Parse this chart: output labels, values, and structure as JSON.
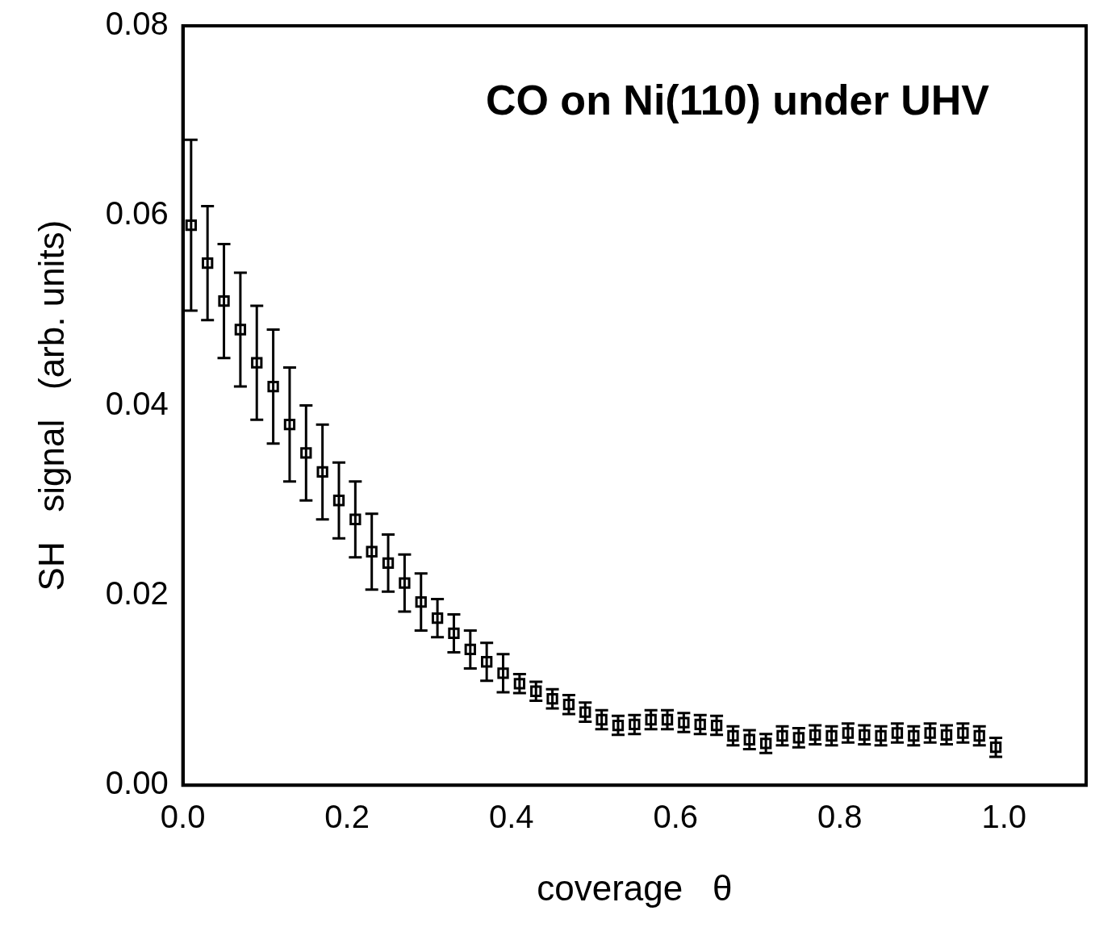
{
  "chart_data": {
    "type": "scatter",
    "xlabel": "coverage   θ",
    "ylabel": "SH   signal   (arb. units)",
    "annotations": [
      "CO on Ni(110) under UHV"
    ],
    "xlim": [
      0,
      1.1
    ],
    "ylim": [
      0,
      0.08
    ],
    "xticks": [
      {
        "value": 0,
        "label": "0.0"
      },
      {
        "value": 0.2,
        "label": "0.2"
      },
      {
        "value": 0.4,
        "label": "0.4"
      },
      {
        "value": 0.6,
        "label": "0.6"
      },
      {
        "value": 0.8,
        "label": "0.8"
      },
      {
        "value": 1,
        "label": "1.0"
      }
    ],
    "yticks": [
      {
        "value": 0,
        "label": "0.00"
      },
      {
        "value": 0.02,
        "label": "0.02"
      },
      {
        "value": 0.04,
        "label": "0.04"
      },
      {
        "value": 0.06,
        "label": "0.06"
      },
      {
        "value": 0.08,
        "label": "0.08"
      }
    ],
    "marker": "square",
    "series": [
      {
        "color": "#000000",
        "x": [
          0.01,
          0.03,
          0.05,
          0.07,
          0.09,
          0.11,
          0.13,
          0.15,
          0.17,
          0.19,
          0.21,
          0.23,
          0.25,
          0.27,
          0.29,
          0.31,
          0.33,
          0.35,
          0.37,
          0.39,
          0.41,
          0.43,
          0.45,
          0.47,
          0.49,
          0.51,
          0.53,
          0.55,
          0.57,
          0.59,
          0.61,
          0.63,
          0.65,
          0.67,
          0.69,
          0.71,
          0.73,
          0.75,
          0.77,
          0.79,
          0.81,
          0.83,
          0.85,
          0.87,
          0.89,
          0.91,
          0.93,
          0.95,
          0.97,
          0.99
        ],
        "values": [
          0.059,
          0.055,
          0.051,
          0.048,
          0.0445,
          0.042,
          0.038,
          0.035,
          0.033,
          0.03,
          0.028,
          0.0246,
          0.0234,
          0.0213,
          0.0193,
          0.0176,
          0.016,
          0.0143,
          0.013,
          0.0118,
          0.0107,
          0.0099,
          0.0091,
          0.0085,
          0.0077,
          0.0069,
          0.0063,
          0.0064,
          0.0069,
          0.0069,
          0.0066,
          0.0064,
          0.0063,
          0.0052,
          0.0048,
          0.0044,
          0.0052,
          0.005,
          0.0053,
          0.0052,
          0.0055,
          0.0053,
          0.0052,
          0.0055,
          0.0052,
          0.0055,
          0.0053,
          0.0055,
          0.0052,
          0.004
        ],
        "errors": [
          0.009,
          0.006,
          0.006,
          0.006,
          0.006,
          0.006,
          0.006,
          0.005,
          0.005,
          0.004,
          0.004,
          0.004,
          0.003,
          0.003,
          0.003,
          0.002,
          0.002,
          0.002,
          0.002,
          0.002,
          0.001,
          0.001,
          0.001,
          0.001,
          0.001,
          0.001,
          0.001,
          0.001,
          0.001,
          0.001,
          0.001,
          0.001,
          0.001,
          0.001,
          0.001,
          0.001,
          0.001,
          0.001,
          0.001,
          0.001,
          0.001,
          0.001,
          0.001,
          0.001,
          0.001,
          0.001,
          0.001,
          0.001,
          0.001,
          0.001
        ]
      }
    ]
  }
}
